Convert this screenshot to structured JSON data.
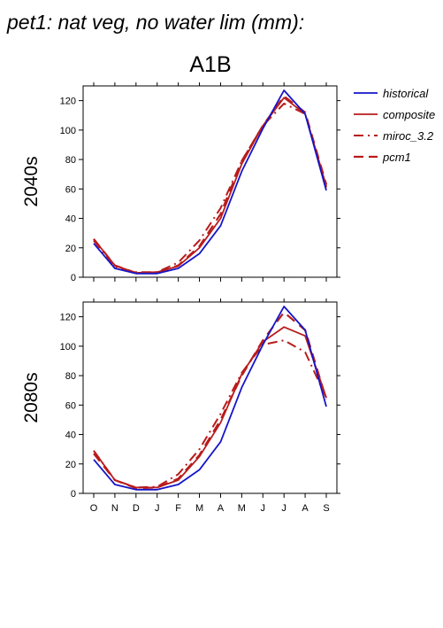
{
  "page": {
    "title": "pet1: nat veg, no water lim (mm):",
    "scenario": "A1B"
  },
  "colors": {
    "historical": "#1515c8",
    "composite": "#b81c1c",
    "miroc_3.2": "#b81c1c",
    "pcm1": "#b81c1c"
  },
  "chart_data": [
    {
      "type": "line",
      "panel_label": "2040s",
      "categories": [
        "O",
        "N",
        "D",
        "J",
        "F",
        "M",
        "A",
        "M",
        "J",
        "J",
        "A",
        "S"
      ],
      "ylim": [
        0,
        130
      ],
      "yticks": [
        0,
        20,
        40,
        60,
        80,
        100,
        120
      ],
      "legend_position": "right",
      "series": [
        {
          "name": "historical",
          "style": "solid",
          "values": [
            23,
            6,
            2.5,
            2.5,
            6,
            16,
            35,
            72,
            101,
            127,
            111,
            59
          ]
        },
        {
          "name": "composite",
          "style": "solid",
          "values": [
            26,
            8,
            3,
            3.5,
            7.5,
            20,
            40,
            77,
            103,
            122,
            111,
            62
          ]
        },
        {
          "name": "miroc_3.2",
          "style": "dashdot",
          "values": [
            25,
            7,
            3.5,
            3.5,
            10,
            25,
            47,
            79,
            103,
            118,
            111,
            61
          ]
        },
        {
          "name": "pcm1",
          "style": "dash",
          "values": [
            26,
            8,
            3,
            3,
            8,
            21,
            43,
            79,
            103,
            123,
            112,
            63
          ]
        }
      ]
    },
    {
      "type": "line",
      "panel_label": "2080s",
      "categories": [
        "O",
        "N",
        "D",
        "J",
        "F",
        "M",
        "A",
        "M",
        "J",
        "J",
        "A",
        "S"
      ],
      "ylim": [
        0,
        130
      ],
      "yticks": [
        0,
        20,
        40,
        60,
        80,
        100,
        120
      ],
      "series": [
        {
          "name": "historical",
          "style": "solid",
          "values": [
            23,
            6,
            2.5,
            2.5,
            6,
            16,
            35,
            72,
            101,
            127,
            111,
            59
          ]
        },
        {
          "name": "composite",
          "style": "solid",
          "values": [
            29,
            9,
            4,
            4,
            9,
            25,
            48,
            81,
            103,
            113,
            107,
            65
          ]
        },
        {
          "name": "miroc_3.2",
          "style": "dashdot",
          "values": [
            29,
            9,
            4,
            4.5,
            13,
            30,
            54,
            82,
            101,
            104,
            96,
            65
          ]
        },
        {
          "name": "pcm1",
          "style": "dash",
          "values": [
            27,
            9,
            3.5,
            4,
            10,
            26,
            50,
            80,
            104,
            123,
            111,
            64
          ]
        }
      ]
    }
  ]
}
